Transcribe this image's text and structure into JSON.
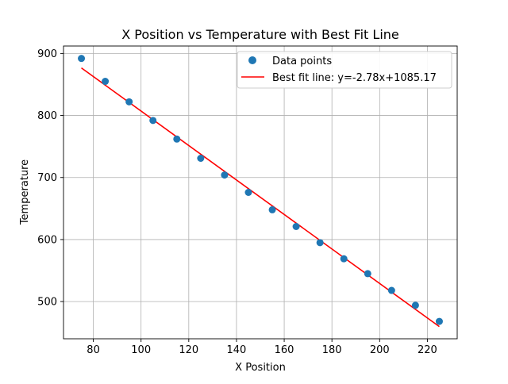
{
  "chart_data": {
    "type": "scatter",
    "title": "X Position vs Temperature with Best Fit Line",
    "xlabel": "X Position",
    "ylabel": "Temperature",
    "xlim": [
      67.5,
      232.5
    ],
    "ylim": [
      440,
      912
    ],
    "xticks": [
      80,
      100,
      120,
      140,
      160,
      180,
      200,
      220
    ],
    "yticks": [
      500,
      600,
      700,
      800,
      900
    ],
    "grid": true,
    "legend_position": "top-right",
    "series": [
      {
        "name": "Data points",
        "type": "scatter",
        "color": "#1f77b4",
        "x": [
          75,
          85,
          95,
          105,
          115,
          125,
          135,
          145,
          155,
          165,
          175,
          185,
          195,
          205,
          215,
          225
        ],
        "y": [
          892,
          855,
          822,
          792,
          762,
          731,
          704,
          676,
          648,
          621,
          595,
          569,
          545,
          518,
          494,
          468
        ]
      },
      {
        "name": "Best fit line: y=-2.78x+1085.17",
        "type": "line",
        "color": "#ff0000",
        "slope": -2.78,
        "intercept": 1085.17,
        "x": [
          75,
          225
        ]
      }
    ]
  }
}
